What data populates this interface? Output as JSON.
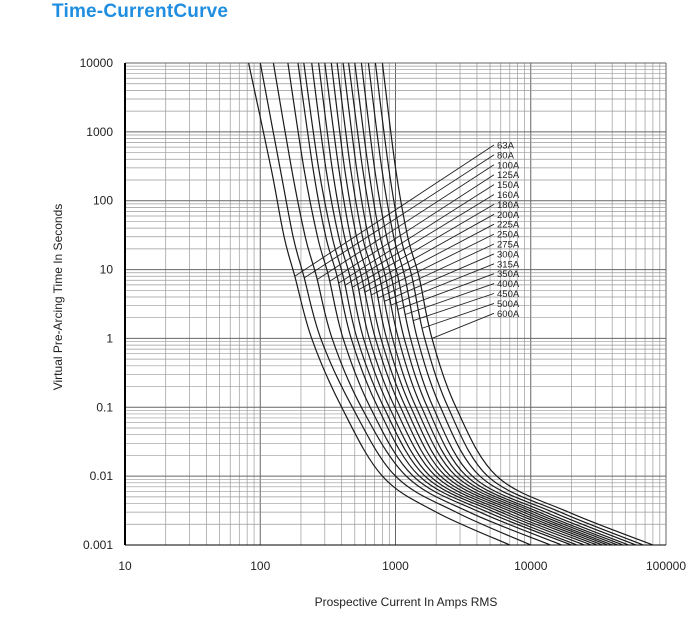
{
  "title": "Time-CurrentCurve",
  "colors": {
    "title": "#1f8ee0",
    "curves": "#1a1a1a",
    "grid": "#9a9a9a"
  },
  "chart_data": {
    "type": "line",
    "title": "Time-CurrentCurve",
    "xlabel": "Prospective Current In Amps RMS",
    "ylabel": "Virtual Pre-Arcing Time In Seconds",
    "x_scale": "log",
    "y_scale": "log",
    "xlim": [
      10,
      100000
    ],
    "ylim": [
      0.001,
      10000
    ],
    "x_ticks": [
      10,
      100,
      1000,
      10000,
      100000
    ],
    "x_tick_labels": [
      "10",
      "100",
      "1000",
      "10000",
      "100000"
    ],
    "y_ticks": [
      0.001,
      0.01,
      0.1,
      1,
      10,
      100,
      1000,
      10000
    ],
    "y_tick_labels": [
      "0.001",
      "0.01",
      "0.1",
      "1",
      "10",
      "100",
      "1000",
      "10000"
    ],
    "grid": true,
    "legend": "callout labels at right of curves",
    "series": [
      {
        "name": "63A",
        "points": [
          [
            82,
            10000
          ],
          [
            120,
            300
          ],
          [
            150,
            30
          ],
          [
            180,
            8
          ],
          [
            240,
            1
          ],
          [
            400,
            0.1
          ],
          [
            800,
            0.01
          ],
          [
            2000,
            0.003
          ],
          [
            7000,
            0.001
          ]
        ]
      },
      {
        "name": "80A",
        "points": [
          [
            100,
            10000
          ],
          [
            140,
            300
          ],
          [
            175,
            30
          ],
          [
            210,
            8
          ],
          [
            280,
            1
          ],
          [
            480,
            0.1
          ],
          [
            1000,
            0.01
          ],
          [
            2800,
            0.003
          ],
          [
            10000,
            0.001
          ]
        ]
      },
      {
        "name": "100A",
        "points": [
          [
            125,
            10000
          ],
          [
            170,
            300
          ],
          [
            215,
            30
          ],
          [
            260,
            8
          ],
          [
            340,
            1
          ],
          [
            560,
            0.1
          ],
          [
            1200,
            0.01
          ],
          [
            3500,
            0.003
          ],
          [
            14000,
            0.001
          ]
        ]
      },
      {
        "name": "125A",
        "points": [
          [
            160,
            10000
          ],
          [
            210,
            300
          ],
          [
            265,
            30
          ],
          [
            320,
            8
          ],
          [
            410,
            1
          ],
          [
            650,
            0.1
          ],
          [
            1350,
            0.01
          ],
          [
            4200,
            0.003
          ],
          [
            17000,
            0.001
          ]
        ]
      },
      {
        "name": "150A",
        "points": [
          [
            190,
            10000
          ],
          [
            245,
            300
          ],
          [
            305,
            30
          ],
          [
            370,
            8
          ],
          [
            470,
            1
          ],
          [
            740,
            0.1
          ],
          [
            1500,
            0.01
          ],
          [
            4800,
            0.003
          ],
          [
            20000,
            0.001
          ]
        ]
      },
      {
        "name": "160A",
        "points": [
          [
            210,
            10000
          ],
          [
            270,
            300
          ],
          [
            340,
            30
          ],
          [
            410,
            8
          ],
          [
            520,
            1
          ],
          [
            820,
            0.1
          ],
          [
            1650,
            0.01
          ],
          [
            5400,
            0.003
          ],
          [
            22000,
            0.001
          ]
        ]
      },
      {
        "name": "180A",
        "points": [
          [
            240,
            10000
          ],
          [
            305,
            300
          ],
          [
            380,
            30
          ],
          [
            460,
            8
          ],
          [
            580,
            1
          ],
          [
            900,
            0.1
          ],
          [
            1800,
            0.01
          ],
          [
            6000,
            0.003
          ],
          [
            25000,
            0.001
          ]
        ]
      },
      {
        "name": "200A",
        "points": [
          [
            270,
            10000
          ],
          [
            340,
            300
          ],
          [
            420,
            30
          ],
          [
            510,
            8
          ],
          [
            640,
            1
          ],
          [
            990,
            0.1
          ],
          [
            1980,
            0.01
          ],
          [
            6600,
            0.003
          ],
          [
            28000,
            0.001
          ]
        ]
      },
      {
        "name": "225A",
        "points": [
          [
            300,
            10000
          ],
          [
            380,
            300
          ],
          [
            465,
            30
          ],
          [
            560,
            8
          ],
          [
            710,
            1
          ],
          [
            1090,
            0.1
          ],
          [
            2150,
            0.01
          ],
          [
            7300,
            0.003
          ],
          [
            31000,
            0.001
          ]
        ]
      },
      {
        "name": "250A",
        "points": [
          [
            335,
            10000
          ],
          [
            420,
            300
          ],
          [
            515,
            30
          ],
          [
            620,
            8
          ],
          [
            780,
            1
          ],
          [
            1190,
            0.1
          ],
          [
            2350,
            0.01
          ],
          [
            8000,
            0.003
          ],
          [
            34000,
            0.001
          ]
        ]
      },
      {
        "name": "275A",
        "points": [
          [
            370,
            10000
          ],
          [
            465,
            300
          ],
          [
            570,
            30
          ],
          [
            690,
            8
          ],
          [
            860,
            1
          ],
          [
            1300,
            0.1
          ],
          [
            2550,
            0.01
          ],
          [
            8800,
            0.003
          ],
          [
            37000,
            0.001
          ]
        ]
      },
      {
        "name": "300A",
        "points": [
          [
            410,
            10000
          ],
          [
            515,
            300
          ],
          [
            630,
            30
          ],
          [
            760,
            8
          ],
          [
            950,
            1
          ],
          [
            1420,
            0.1
          ],
          [
            2800,
            0.01
          ],
          [
            9600,
            0.003
          ],
          [
            40000,
            0.001
          ]
        ]
      },
      {
        "name": "315A",
        "points": [
          [
            450,
            10000
          ],
          [
            570,
            300
          ],
          [
            700,
            30
          ],
          [
            840,
            8
          ],
          [
            1050,
            1
          ],
          [
            1560,
            0.1
          ],
          [
            3050,
            0.01
          ],
          [
            10500,
            0.003
          ],
          [
            44000,
            0.001
          ]
        ]
      },
      {
        "name": "350A",
        "points": [
          [
            500,
            10000
          ],
          [
            630,
            300
          ],
          [
            770,
            30
          ],
          [
            930,
            8
          ],
          [
            1160,
            1
          ],
          [
            1720,
            0.1
          ],
          [
            3350,
            0.01
          ],
          [
            11500,
            0.003
          ],
          [
            48000,
            0.001
          ]
        ]
      },
      {
        "name": "400A",
        "points": [
          [
            560,
            10000
          ],
          [
            700,
            300
          ],
          [
            860,
            30
          ],
          [
            1040,
            8
          ],
          [
            1290,
            1
          ],
          [
            1900,
            0.1
          ],
          [
            3700,
            0.01
          ],
          [
            12800,
            0.003
          ],
          [
            53000,
            0.001
          ]
        ]
      },
      {
        "name": "450A",
        "points": [
          [
            630,
            10000
          ],
          [
            790,
            300
          ],
          [
            970,
            30
          ],
          [
            1170,
            8
          ],
          [
            1450,
            1
          ],
          [
            2150,
            0.1
          ],
          [
            4200,
            0.01
          ],
          [
            14500,
            0.003
          ],
          [
            60000,
            0.001
          ]
        ]
      },
      {
        "name": "500A",
        "points": [
          [
            710,
            10000
          ],
          [
            890,
            300
          ],
          [
            1090,
            30
          ],
          [
            1320,
            8
          ],
          [
            1640,
            1
          ],
          [
            2450,
            0.1
          ],
          [
            4800,
            0.01
          ],
          [
            16500,
            0.003
          ],
          [
            68000,
            0.001
          ]
        ]
      },
      {
        "name": "600A",
        "points": [
          [
            800,
            10000
          ],
          [
            1000,
            300
          ],
          [
            1230,
            30
          ],
          [
            1490,
            8
          ],
          [
            1860,
            1
          ],
          [
            2800,
            0.1
          ],
          [
            5600,
            0.01
          ],
          [
            19000,
            0.003
          ],
          [
            80000,
            0.001
          ]
        ]
      }
    ]
  }
}
